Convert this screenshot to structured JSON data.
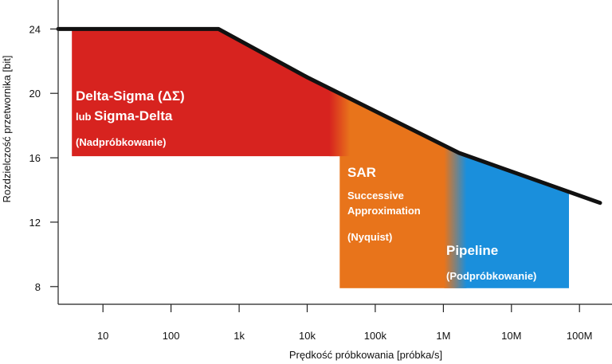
{
  "chart_data": {
    "type": "area",
    "xlabel": "Prędkość próbkowania [próbka/s]",
    "ylabel": "Rozdzielczość przetwornika [bit]",
    "x_scale": "log",
    "x_ticks": [
      {
        "value": 10,
        "label": "10"
      },
      {
        "value": 100,
        "label": "100"
      },
      {
        "value": 1000,
        "label": "1k"
      },
      {
        "value": 10000,
        "label": "10k"
      },
      {
        "value": 100000,
        "label": "100k"
      },
      {
        "value": 1000000,
        "label": "1M"
      },
      {
        "value": 10000000,
        "label": "10M"
      },
      {
        "value": 100000000,
        "label": "100M"
      }
    ],
    "y_ticks": [
      {
        "value": 8,
        "label": "8"
      },
      {
        "value": 12,
        "label": "12"
      },
      {
        "value": 16,
        "label": "16"
      },
      {
        "value": 20,
        "label": "20"
      },
      {
        "value": 24,
        "label": "24"
      }
    ],
    "xlim": [
      2.2,
      300000000
    ],
    "ylim": [
      6.9,
      25.8
    ],
    "grid": false,
    "limit_line": {
      "points": [
        [
          2.2,
          24
        ],
        [
          500,
          24
        ],
        [
          10000,
          21
        ],
        [
          1700000,
          16.3
        ],
        [
          200000000,
          13.2
        ]
      ]
    },
    "regions": [
      {
        "color": "#d7231f",
        "x_range": [
          3.5,
          30000
        ],
        "y_bottom": 16.1,
        "lines": [
          {
            "text": "Delta-Sigma (ΔΣ)",
            "size": "large"
          },
          {
            "text": "lub",
            "size": "small",
            "inline_with": "Sigma-Delta"
          },
          {
            "text": "Sigma-Delta",
            "size": "large"
          },
          {
            "text": "(Nadpróbkowanie)",
            "size": "small"
          }
        ]
      },
      {
        "color": "#e8741b",
        "x_range": [
          30000,
          1500000
        ],
        "y_bottom": 7.9,
        "lines": [
          {
            "text": "SAR",
            "size": "large"
          },
          {
            "text": "Successive",
            "size": "small"
          },
          {
            "text": "Approximation",
            "size": "small"
          },
          {
            "text": "(Nyquist)",
            "size": "small"
          }
        ]
      },
      {
        "color": "#1a8fdc",
        "x_range": [
          1500000,
          70000000
        ],
        "y_bottom": 7.9,
        "lines": [
          {
            "text": "Pipeline",
            "size": "large"
          },
          {
            "text": "(Podpróbkowanie)",
            "size": "small"
          }
        ]
      }
    ]
  }
}
